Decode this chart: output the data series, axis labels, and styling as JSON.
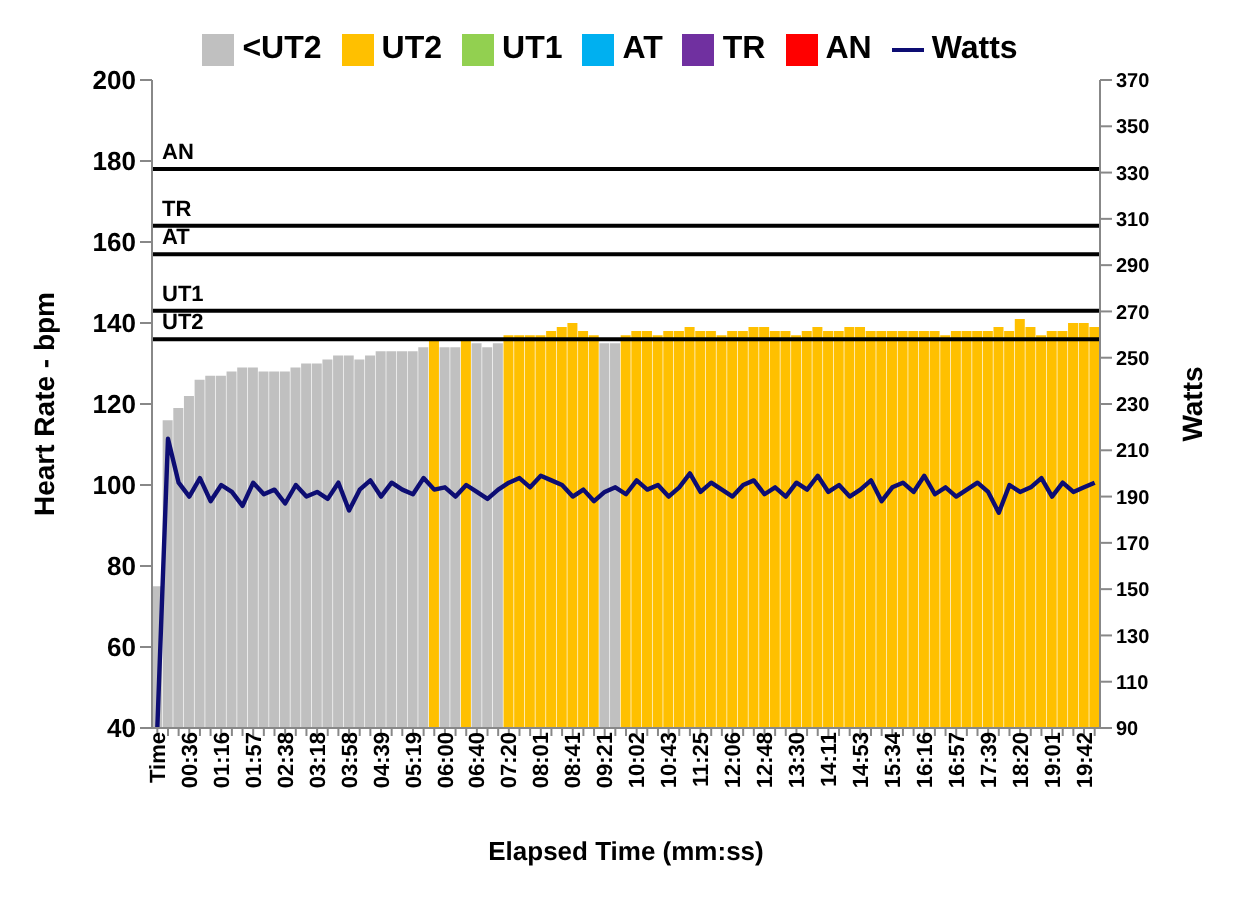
{
  "chart_data": {
    "type": "bar",
    "stacked": true,
    "legend": "top",
    "xlabel": "Elapsed Time (mm:ss)",
    "ylabel": "Heart Rate - bpm",
    "y2label": "Watts",
    "categories": [
      "Time",
      null,
      null,
      "00:36",
      null,
      null,
      "01:16",
      null,
      null,
      "01:57",
      null,
      null,
      "02:38",
      null,
      null,
      "03:18",
      null,
      null,
      "03:58",
      null,
      null,
      "04:39",
      null,
      null,
      "05:19",
      null,
      null,
      "06:00",
      null,
      null,
      "06:40",
      null,
      null,
      "07:20",
      null,
      null,
      "08:01",
      null,
      null,
      "08:41",
      null,
      null,
      "09:21",
      null,
      null,
      "10:02",
      null,
      null,
      "10:43",
      null,
      null,
      "11:25",
      null,
      null,
      "12:06",
      null,
      null,
      "12:48",
      null,
      null,
      "13:30",
      null,
      null,
      "14:11",
      null,
      null,
      "14:53",
      null,
      null,
      "15:34",
      null,
      null,
      "16:16",
      null,
      null,
      "16:57",
      null,
      null,
      "17:39",
      null,
      null,
      "18:20",
      null,
      null,
      "19:01",
      null,
      null,
      "19:42",
      null
    ],
    "ylim": [
      40,
      200
    ],
    "yticks": [
      40,
      60,
      80,
      100,
      120,
      140,
      160,
      180,
      200
    ],
    "y2lim": [
      90,
      370
    ],
    "y2ticks": [
      90,
      110,
      130,
      150,
      170,
      190,
      210,
      230,
      250,
      270,
      290,
      310,
      330,
      350,
      370
    ],
    "ref_lines": [
      {
        "axis": "y",
        "value": 136,
        "label": "UT2",
        "color": "#000000"
      },
      {
        "axis": "y",
        "value": 143,
        "label": "UT1",
        "color": "#000000"
      },
      {
        "axis": "y",
        "value": 157,
        "label": "AT",
        "color": "#000000"
      },
      {
        "axis": "y",
        "value": 164,
        "label": "TR",
        "color": "#000000"
      },
      {
        "axis": "y",
        "value": 178,
        "label": "AN",
        "color": "#000000"
      }
    ],
    "series": [
      {
        "name": "<UT2",
        "color": "#c0c0c0",
        "values": [
          75,
          116,
          119,
          122,
          126,
          127,
          127,
          128,
          129,
          129,
          128,
          128,
          128,
          129,
          130,
          130,
          131,
          132,
          132,
          131,
          132,
          133,
          133,
          133,
          133,
          134,
          null,
          134,
          134,
          null,
          135,
          134,
          135,
          null,
          null,
          null,
          null,
          null,
          null,
          null,
          null,
          null,
          135,
          135,
          null,
          null,
          null,
          null,
          null,
          null,
          null,
          null,
          null,
          null,
          null,
          null,
          null,
          null,
          null,
          null,
          null,
          null,
          null,
          null,
          null,
          null,
          null,
          null,
          null,
          null,
          null,
          null,
          null,
          null,
          null,
          null,
          null,
          null,
          null,
          null,
          null,
          null,
          null,
          null,
          null,
          null,
          null,
          null,
          null
        ]
      },
      {
        "name": "UT2",
        "color": "#ffc000",
        "values": [
          null,
          null,
          null,
          null,
          null,
          null,
          null,
          null,
          null,
          null,
          null,
          null,
          null,
          null,
          null,
          null,
          null,
          null,
          null,
          null,
          null,
          null,
          null,
          null,
          null,
          null,
          136,
          null,
          null,
          136,
          null,
          null,
          null,
          137,
          137,
          137,
          137,
          138,
          139,
          140,
          138,
          137,
          null,
          null,
          137,
          138,
          138,
          137,
          138,
          138,
          139,
          138,
          138,
          137,
          138,
          138,
          139,
          139,
          138,
          138,
          137,
          138,
          139,
          138,
          138,
          139,
          139,
          138,
          138,
          138,
          138,
          138,
          138,
          138,
          137,
          138,
          138,
          138,
          138,
          139,
          138,
          141,
          139,
          137,
          138,
          138,
          140,
          140,
          139
        ]
      },
      {
        "name": "UT1",
        "color": "#92d050",
        "values": [
          null,
          null,
          null,
          null,
          null,
          null,
          null,
          null,
          null,
          null,
          null,
          null,
          null,
          null,
          null,
          null,
          null,
          null,
          null,
          null,
          null,
          null,
          null,
          null,
          null,
          null,
          null,
          null,
          null,
          null,
          null,
          null,
          null,
          null,
          null,
          null,
          null,
          null,
          null,
          null,
          null,
          null,
          null,
          null,
          null,
          null,
          null,
          null,
          null,
          null,
          null,
          null,
          null,
          null,
          null,
          null,
          null,
          null,
          null,
          null,
          null,
          null,
          null,
          null,
          null,
          null,
          null,
          null,
          null,
          null,
          null,
          null,
          null,
          null,
          null,
          null,
          null,
          null,
          null,
          null,
          null,
          null,
          null,
          null,
          null,
          null,
          null,
          null,
          null
        ]
      },
      {
        "name": "AT",
        "color": "#00b0f0",
        "values": [
          null,
          null,
          null,
          null,
          null,
          null,
          null,
          null,
          null,
          null,
          null,
          null,
          null,
          null,
          null,
          null,
          null,
          null,
          null,
          null,
          null,
          null,
          null,
          null,
          null,
          null,
          null,
          null,
          null,
          null,
          null,
          null,
          null,
          null,
          null,
          null,
          null,
          null,
          null,
          null,
          null,
          null,
          null,
          null,
          null,
          null,
          null,
          null,
          null,
          null,
          null,
          null,
          null,
          null,
          null,
          null,
          null,
          null,
          null,
          null,
          null,
          null,
          null,
          null,
          null,
          null,
          null,
          null,
          null,
          null,
          null,
          null,
          null,
          null,
          null,
          null,
          null,
          null,
          null,
          null,
          null,
          null,
          null,
          null,
          null,
          null,
          null,
          null,
          null
        ]
      },
      {
        "name": "TR",
        "color": "#7030a0",
        "values": [
          null,
          null,
          null,
          null,
          null,
          null,
          null,
          null,
          null,
          null,
          null,
          null,
          null,
          null,
          null,
          null,
          null,
          null,
          null,
          null,
          null,
          null,
          null,
          null,
          null,
          null,
          null,
          null,
          null,
          null,
          null,
          null,
          null,
          null,
          null,
          null,
          null,
          null,
          null,
          null,
          null,
          null,
          null,
          null,
          null,
          null,
          null,
          null,
          null,
          null,
          null,
          null,
          null,
          null,
          null,
          null,
          null,
          null,
          null,
          null,
          null,
          null,
          null,
          null,
          null,
          null,
          null,
          null,
          null,
          null,
          null,
          null,
          null,
          null,
          null,
          null,
          null,
          null,
          null,
          null,
          null,
          null,
          null,
          null,
          null,
          null,
          null,
          null,
          null
        ]
      },
      {
        "name": "AN",
        "color": "#ff0000",
        "values": [
          null,
          null,
          null,
          null,
          null,
          null,
          null,
          null,
          null,
          null,
          null,
          null,
          null,
          null,
          null,
          null,
          null,
          null,
          null,
          null,
          null,
          null,
          null,
          null,
          null,
          null,
          null,
          null,
          null,
          null,
          null,
          null,
          null,
          null,
          null,
          null,
          null,
          null,
          null,
          null,
          null,
          null,
          null,
          null,
          null,
          null,
          null,
          null,
          null,
          null,
          null,
          null,
          null,
          null,
          null,
          null,
          null,
          null,
          null,
          null,
          null,
          null,
          null,
          null,
          null,
          null,
          null,
          null,
          null,
          null,
          null,
          null,
          null,
          null,
          null,
          null,
          null,
          null,
          null,
          null,
          null,
          null,
          null,
          null,
          null,
          null,
          null,
          null,
          null
        ]
      },
      {
        "name": "Watts",
        "type": "line",
        "axis": "y2",
        "color": "#0d0d73",
        "values": [
          90,
          215,
          196,
          190,
          198,
          188,
          195,
          192,
          186,
          196,
          191,
          193,
          187,
          195,
          190,
          192,
          189,
          196,
          184,
          193,
          197,
          190,
          196,
          193,
          191,
          198,
          193,
          194,
          190,
          195,
          192,
          189,
          193,
          196,
          198,
          194,
          199,
          197,
          195,
          190,
          193,
          188,
          192,
          194,
          191,
          197,
          193,
          195,
          190,
          194,
          200,
          192,
          196,
          193,
          190,
          195,
          197,
          191,
          194,
          190,
          196,
          193,
          199,
          192,
          195,
          190,
          193,
          197,
          188,
          194,
          196,
          192,
          199,
          191,
          194,
          190,
          193,
          196,
          192,
          183,
          195,
          192,
          194,
          198,
          190,
          196,
          192,
          194,
          196
        ]
      }
    ]
  }
}
